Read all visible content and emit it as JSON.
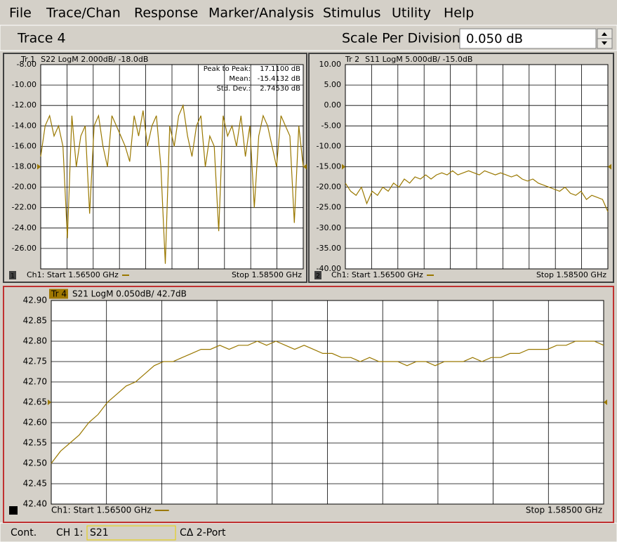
{
  "menu": [
    "File",
    "Trace/Chan",
    "Response",
    "Marker/Analysis",
    "Stimulus",
    "Utility",
    "Help"
  ],
  "toolbar": {
    "trace": "Trace 4",
    "scale_label": "Scale Per Division",
    "scale_value": "0.050 dB"
  },
  "chart_data": [
    {
      "type": "line",
      "trace_label": "Tr 1",
      "title": "S22 LogM 2.000dB/ -18.0dB",
      "channel": "1",
      "start_label": "Ch1: Start  1.56500 GHz",
      "stop_label": "Stop  1.58500 GHz",
      "stats": [
        {
          "label": "Peak to Peak:",
          "value": "17.1100 dB"
        },
        {
          "label": "Mean:",
          "value": "-15.4132 dB"
        },
        {
          "label": "Std. Dev.:",
          "value": "2.74530 dB"
        }
      ],
      "color": "#9a7800",
      "ref_level": -18,
      "ylim": [
        -28,
        -8
      ],
      "yticks": [
        {
          "value": -8,
          "label": "-8.00"
        },
        {
          "value": -10,
          "label": "-10.00"
        },
        {
          "value": -12,
          "label": "-12.00"
        },
        {
          "value": -14,
          "label": "-14.00"
        },
        {
          "value": -16,
          "label": "-16.00"
        },
        {
          "value": -18,
          "label": "-18.00"
        },
        {
          "value": -20,
          "label": "-20.00"
        },
        {
          "value": -22,
          "label": "-22.00"
        },
        {
          "value": -24,
          "label": "-24.00"
        },
        {
          "value": -26,
          "label": "-26.00"
        }
      ],
      "values": [
        -17,
        -14,
        -13,
        -15,
        -14,
        -16,
        -25,
        -13,
        -18,
        -15,
        -14,
        -22.6,
        -14,
        -13,
        -16,
        -18,
        -13,
        -14,
        -15,
        -16,
        -17.5,
        -13,
        -15,
        -12.5,
        -16,
        -14,
        -13,
        -18,
        -27.5,
        -14,
        -16,
        -13,
        -12,
        -15,
        -17,
        -14,
        -13,
        -18,
        -15,
        -16,
        -24.3,
        -13,
        -15,
        -14,
        -16,
        -13,
        -17,
        -14,
        -22,
        -15,
        -13,
        -14,
        -16,
        -18,
        -13,
        -14,
        -15,
        -23.5,
        -14,
        -18
      ]
    },
    {
      "type": "line",
      "trace_label": "Tr 2",
      "title": "S11 LogM 5.000dB/ -15.0dB",
      "channel": "2",
      "start_label": "Ch1: Start  1.56500 GHz",
      "stop_label": "Stop  1.58500 GHz",
      "color": "#9a7800",
      "ref_level": -15,
      "ylim": [
        -40,
        10
      ],
      "yticks": [
        {
          "value": 10,
          "label": "10.00"
        },
        {
          "value": 5,
          "label": "5.00"
        },
        {
          "value": 0,
          "label": "0.00"
        },
        {
          "value": -5,
          "label": "-5.00"
        },
        {
          "value": -10,
          "label": "-10.00"
        },
        {
          "value": -15,
          "label": "-15.00"
        },
        {
          "value": -20,
          "label": "-20.00"
        },
        {
          "value": -25,
          "label": "-25.00"
        },
        {
          "value": -30,
          "label": "-30.00"
        },
        {
          "value": -35,
          "label": "-35.00"
        },
        {
          "value": -40,
          "label": "-40.00"
        }
      ],
      "values": [
        -19,
        -21,
        -22,
        -20,
        -24,
        -21,
        -22,
        -20,
        -21,
        -19,
        -20,
        -18,
        -19,
        -17.5,
        -18,
        -17,
        -18,
        -17,
        -16.5,
        -17,
        -16,
        -17,
        -16.5,
        -16,
        -16.5,
        -17,
        -16,
        -16.5,
        -17,
        -16.5,
        -17,
        -17.5,
        -17,
        -18,
        -18.5,
        -18,
        -19,
        -19.5,
        -20,
        -20.5,
        -21,
        -20,
        -21.5,
        -22,
        -21,
        -23,
        -22,
        -22.5,
        -23,
        -26
      ]
    },
    {
      "type": "line",
      "trace_label": "Tr 4",
      "title": "S21 LogM 0.050dB/ 42.7dB",
      "start_label": "Ch1: Start  1.56500 GHz",
      "stop_label": "Stop  1.58500 GHz",
      "color": "#9a7800",
      "ref_level": 42.65,
      "ylim": [
        42.4,
        42.9
      ],
      "yticks": [
        {
          "value": 42.9,
          "label": "42.90"
        },
        42.85,
        {
          "value": 42.8,
          "label": "42.80"
        },
        42.75,
        {
          "value": 42.7,
          "label": "42.70"
        },
        42.65,
        {
          "value": 42.6,
          "label": "42.60"
        },
        42.55,
        {
          "value": 42.5,
          "label": "42.50"
        },
        42.45,
        {
          "value": 42.4,
          "label": "42.40"
        }
      ],
      "values": [
        42.5,
        42.53,
        42.55,
        42.57,
        42.6,
        42.62,
        42.65,
        42.67,
        42.69,
        42.7,
        42.72,
        42.74,
        42.75,
        42.75,
        42.76,
        42.77,
        42.78,
        42.78,
        42.79,
        42.78,
        42.79,
        42.79,
        42.8,
        42.79,
        42.8,
        42.79,
        42.78,
        42.79,
        42.78,
        42.77,
        42.77,
        42.76,
        42.76,
        42.75,
        42.76,
        42.75,
        42.75,
        42.75,
        42.74,
        42.75,
        42.75,
        42.74,
        42.75,
        42.75,
        42.75,
        42.76,
        42.75,
        42.76,
        42.76,
        42.77,
        42.77,
        42.78,
        42.78,
        42.78,
        42.79,
        42.79,
        42.8,
        42.8,
        42.8,
        42.79
      ]
    }
  ],
  "status": {
    "mode": "Cont.",
    "channel": "CH 1:",
    "param": "S21",
    "cal": "CΔ 2-Port"
  }
}
